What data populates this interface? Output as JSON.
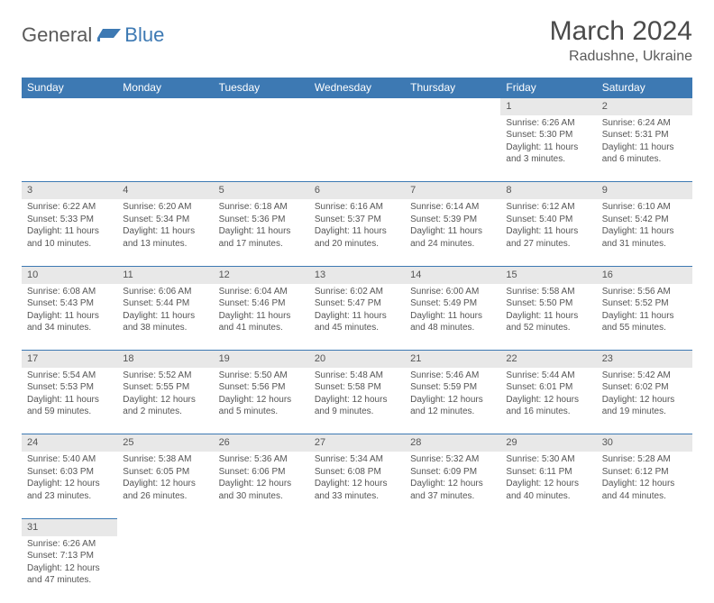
{
  "logo": {
    "part1": "General",
    "part2": "Blue"
  },
  "title": "March 2024",
  "location": "Radushne, Ukraine",
  "colors": {
    "header_bg": "#3d79b3",
    "header_fg": "#ffffff",
    "daynum_bg": "#e8e8e8",
    "cell_border": "#3d79b3",
    "text": "#555555",
    "logo_gray": "#5a5a5a",
    "logo_blue": "#3d79b3"
  },
  "fonts": {
    "title_size": 30,
    "location_size": 16,
    "th_size": 12,
    "cell_size": 10
  },
  "weekdays": [
    "Sunday",
    "Monday",
    "Tuesday",
    "Wednesday",
    "Thursday",
    "Friday",
    "Saturday"
  ],
  "weeks": [
    [
      null,
      null,
      null,
      null,
      null,
      {
        "n": "1",
        "sr": "Sunrise: 6:26 AM",
        "ss": "Sunset: 5:30 PM",
        "d1": "Daylight: 11 hours",
        "d2": "and 3 minutes."
      },
      {
        "n": "2",
        "sr": "Sunrise: 6:24 AM",
        "ss": "Sunset: 5:31 PM",
        "d1": "Daylight: 11 hours",
        "d2": "and 6 minutes."
      }
    ],
    [
      {
        "n": "3",
        "sr": "Sunrise: 6:22 AM",
        "ss": "Sunset: 5:33 PM",
        "d1": "Daylight: 11 hours",
        "d2": "and 10 minutes."
      },
      {
        "n": "4",
        "sr": "Sunrise: 6:20 AM",
        "ss": "Sunset: 5:34 PM",
        "d1": "Daylight: 11 hours",
        "d2": "and 13 minutes."
      },
      {
        "n": "5",
        "sr": "Sunrise: 6:18 AM",
        "ss": "Sunset: 5:36 PM",
        "d1": "Daylight: 11 hours",
        "d2": "and 17 minutes."
      },
      {
        "n": "6",
        "sr": "Sunrise: 6:16 AM",
        "ss": "Sunset: 5:37 PM",
        "d1": "Daylight: 11 hours",
        "d2": "and 20 minutes."
      },
      {
        "n": "7",
        "sr": "Sunrise: 6:14 AM",
        "ss": "Sunset: 5:39 PM",
        "d1": "Daylight: 11 hours",
        "d2": "and 24 minutes."
      },
      {
        "n": "8",
        "sr": "Sunrise: 6:12 AM",
        "ss": "Sunset: 5:40 PM",
        "d1": "Daylight: 11 hours",
        "d2": "and 27 minutes."
      },
      {
        "n": "9",
        "sr": "Sunrise: 6:10 AM",
        "ss": "Sunset: 5:42 PM",
        "d1": "Daylight: 11 hours",
        "d2": "and 31 minutes."
      }
    ],
    [
      {
        "n": "10",
        "sr": "Sunrise: 6:08 AM",
        "ss": "Sunset: 5:43 PM",
        "d1": "Daylight: 11 hours",
        "d2": "and 34 minutes."
      },
      {
        "n": "11",
        "sr": "Sunrise: 6:06 AM",
        "ss": "Sunset: 5:44 PM",
        "d1": "Daylight: 11 hours",
        "d2": "and 38 minutes."
      },
      {
        "n": "12",
        "sr": "Sunrise: 6:04 AM",
        "ss": "Sunset: 5:46 PM",
        "d1": "Daylight: 11 hours",
        "d2": "and 41 minutes."
      },
      {
        "n": "13",
        "sr": "Sunrise: 6:02 AM",
        "ss": "Sunset: 5:47 PM",
        "d1": "Daylight: 11 hours",
        "d2": "and 45 minutes."
      },
      {
        "n": "14",
        "sr": "Sunrise: 6:00 AM",
        "ss": "Sunset: 5:49 PM",
        "d1": "Daylight: 11 hours",
        "d2": "and 48 minutes."
      },
      {
        "n": "15",
        "sr": "Sunrise: 5:58 AM",
        "ss": "Sunset: 5:50 PM",
        "d1": "Daylight: 11 hours",
        "d2": "and 52 minutes."
      },
      {
        "n": "16",
        "sr": "Sunrise: 5:56 AM",
        "ss": "Sunset: 5:52 PM",
        "d1": "Daylight: 11 hours",
        "d2": "and 55 minutes."
      }
    ],
    [
      {
        "n": "17",
        "sr": "Sunrise: 5:54 AM",
        "ss": "Sunset: 5:53 PM",
        "d1": "Daylight: 11 hours",
        "d2": "and 59 minutes."
      },
      {
        "n": "18",
        "sr": "Sunrise: 5:52 AM",
        "ss": "Sunset: 5:55 PM",
        "d1": "Daylight: 12 hours",
        "d2": "and 2 minutes."
      },
      {
        "n": "19",
        "sr": "Sunrise: 5:50 AM",
        "ss": "Sunset: 5:56 PM",
        "d1": "Daylight: 12 hours",
        "d2": "and 5 minutes."
      },
      {
        "n": "20",
        "sr": "Sunrise: 5:48 AM",
        "ss": "Sunset: 5:58 PM",
        "d1": "Daylight: 12 hours",
        "d2": "and 9 minutes."
      },
      {
        "n": "21",
        "sr": "Sunrise: 5:46 AM",
        "ss": "Sunset: 5:59 PM",
        "d1": "Daylight: 12 hours",
        "d2": "and 12 minutes."
      },
      {
        "n": "22",
        "sr": "Sunrise: 5:44 AM",
        "ss": "Sunset: 6:01 PM",
        "d1": "Daylight: 12 hours",
        "d2": "and 16 minutes."
      },
      {
        "n": "23",
        "sr": "Sunrise: 5:42 AM",
        "ss": "Sunset: 6:02 PM",
        "d1": "Daylight: 12 hours",
        "d2": "and 19 minutes."
      }
    ],
    [
      {
        "n": "24",
        "sr": "Sunrise: 5:40 AM",
        "ss": "Sunset: 6:03 PM",
        "d1": "Daylight: 12 hours",
        "d2": "and 23 minutes."
      },
      {
        "n": "25",
        "sr": "Sunrise: 5:38 AM",
        "ss": "Sunset: 6:05 PM",
        "d1": "Daylight: 12 hours",
        "d2": "and 26 minutes."
      },
      {
        "n": "26",
        "sr": "Sunrise: 5:36 AM",
        "ss": "Sunset: 6:06 PM",
        "d1": "Daylight: 12 hours",
        "d2": "and 30 minutes."
      },
      {
        "n": "27",
        "sr": "Sunrise: 5:34 AM",
        "ss": "Sunset: 6:08 PM",
        "d1": "Daylight: 12 hours",
        "d2": "and 33 minutes."
      },
      {
        "n": "28",
        "sr": "Sunrise: 5:32 AM",
        "ss": "Sunset: 6:09 PM",
        "d1": "Daylight: 12 hours",
        "d2": "and 37 minutes."
      },
      {
        "n": "29",
        "sr": "Sunrise: 5:30 AM",
        "ss": "Sunset: 6:11 PM",
        "d1": "Daylight: 12 hours",
        "d2": "and 40 minutes."
      },
      {
        "n": "30",
        "sr": "Sunrise: 5:28 AM",
        "ss": "Sunset: 6:12 PM",
        "d1": "Daylight: 12 hours",
        "d2": "and 44 minutes."
      }
    ],
    [
      {
        "n": "31",
        "sr": "Sunrise: 6:26 AM",
        "ss": "Sunset: 7:13 PM",
        "d1": "Daylight: 12 hours",
        "d2": "and 47 minutes."
      },
      null,
      null,
      null,
      null,
      null,
      null
    ]
  ]
}
